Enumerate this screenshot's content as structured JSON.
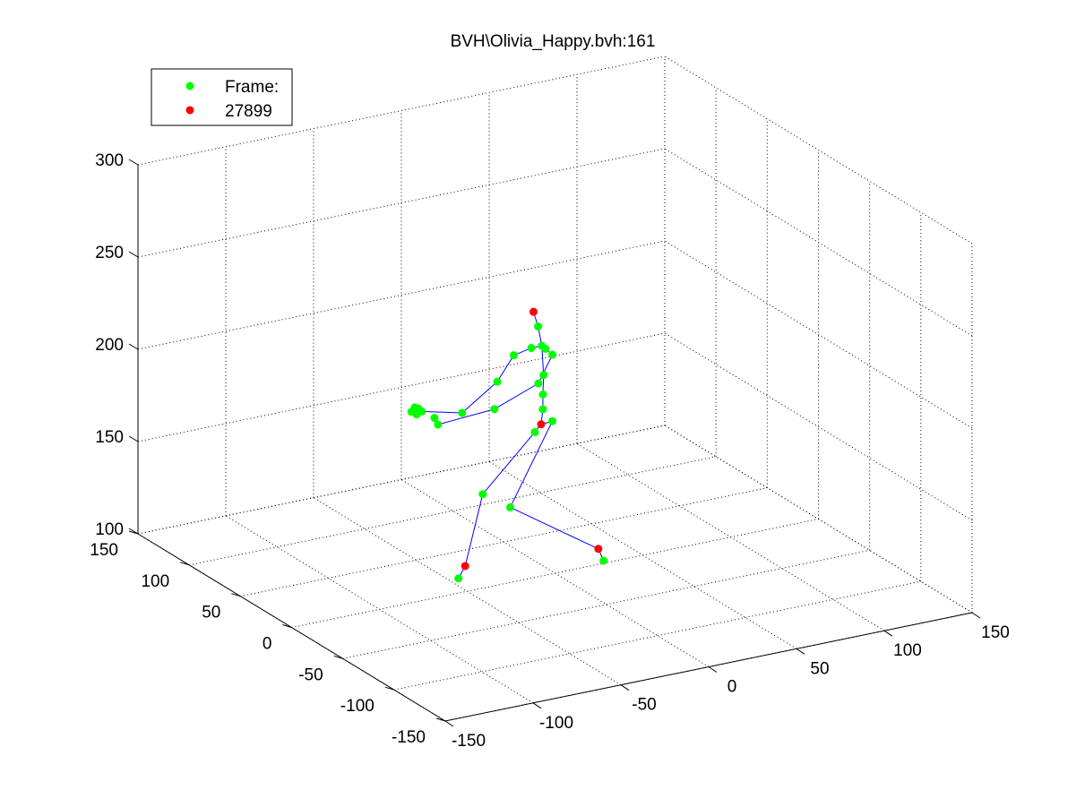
{
  "chart_data": {
    "type": "scatter3d",
    "title": "BVH\\Olivia_Happy.bvh:161",
    "xlim": [
      -150,
      150
    ],
    "ylim": [
      -150,
      150
    ],
    "zlim": [
      100,
      300
    ],
    "x_ticks": [
      "-150",
      "-100",
      "-50",
      "0",
      "50",
      "100",
      "150"
    ],
    "y_ticks": [
      "-150",
      "-100",
      "-50",
      "0",
      "50",
      "100",
      "150"
    ],
    "z_ticks": [
      "100",
      "150",
      "200",
      "250",
      "300"
    ],
    "grid": true,
    "legend": {
      "placement": "top-left",
      "entries": [
        {
          "label": "Frame:",
          "color": "#00ff00"
        },
        {
          "label": "27899",
          "color": "#ff0000"
        }
      ]
    },
    "colors": {
      "joint": "#00ff00",
      "end_joint": "#ff0000",
      "bone": "#0000ff"
    },
    "joints": [
      {
        "id": "hips",
        "x": -5,
        "y": 5,
        "z": 180,
        "end": true
      },
      {
        "id": "spine1",
        "x": -4,
        "y": 5,
        "z": 188
      },
      {
        "id": "spine2",
        "x": -4,
        "y": 5,
        "z": 196
      },
      {
        "id": "chest",
        "x": -3,
        "y": 6,
        "z": 206
      },
      {
        "id": "neck",
        "x": -4,
        "y": 6,
        "z": 222
      },
      {
        "id": "head",
        "x": -5,
        "y": 8,
        "z": 232
      },
      {
        "id": "head_end",
        "x": -7,
        "y": 9,
        "z": 240,
        "end": true
      },
      {
        "id": "r_shoulder",
        "x": -10,
        "y": 6,
        "z": 222
      },
      {
        "id": "r_upperarm",
        "x": -20,
        "y": 6,
        "z": 220
      },
      {
        "id": "r_forearm",
        "x": -30,
        "y": 5,
        "z": 208
      },
      {
        "id": "r_hand",
        "x": -50,
        "y": 5,
        "z": 195
      },
      {
        "id": "r_finger1",
        "x": -70,
        "y": 10,
        "z": 198
      },
      {
        "id": "r_finger2",
        "x": -72,
        "y": 10,
        "z": 200
      },
      {
        "id": "r_finger3",
        "x": -74,
        "y": 10,
        "z": 201
      },
      {
        "id": "r_finger4",
        "x": -73,
        "y": 10,
        "z": 197
      },
      {
        "id": "r_finger5",
        "x": -76,
        "y": 10,
        "z": 199
      },
      {
        "id": "l_shoulder",
        "x": -2,
        "y": 6,
        "z": 220
      },
      {
        "id": "l_upperarm",
        "x": 2,
        "y": 6,
        "z": 216
      },
      {
        "id": "l_forearm",
        "x": -6,
        "y": 6,
        "z": 202
      },
      {
        "id": "l_hand",
        "x": -31,
        "y": 6,
        "z": 193
      },
      {
        "id": "l_finger1",
        "x": -62,
        "y": 8,
        "z": 190
      },
      {
        "id": "l_finger2",
        "x": -64,
        "y": 8,
        "z": 194
      },
      {
        "id": "r_upleg",
        "x": -8,
        "y": 6,
        "z": 176
      },
      {
        "id": "r_leg",
        "x": -40,
        "y": 2,
        "z": 150
      },
      {
        "id": "r_foot",
        "x": -50,
        "y": 2,
        "z": 113,
        "end": true
      },
      {
        "id": "r_toe",
        "x": -55,
        "y": 0,
        "z": 108
      },
      {
        "id": "l_upleg",
        "x": 2,
        "y": 6,
        "z": 180
      },
      {
        "id": "l_leg",
        "x": -22,
        "y": 6,
        "z": 138
      },
      {
        "id": "l_foot",
        "x": 20,
        "y": -8,
        "z": 112,
        "end": true
      },
      {
        "id": "l_toe",
        "x": 23,
        "y": -8,
        "z": 105
      }
    ],
    "bones": [
      [
        "hips",
        "spine1"
      ],
      [
        "spine1",
        "spine2"
      ],
      [
        "spine2",
        "chest"
      ],
      [
        "chest",
        "neck"
      ],
      [
        "neck",
        "head"
      ],
      [
        "head",
        "head_end"
      ],
      [
        "neck",
        "r_shoulder"
      ],
      [
        "r_shoulder",
        "r_upperarm"
      ],
      [
        "r_upperarm",
        "r_forearm"
      ],
      [
        "r_forearm",
        "r_hand"
      ],
      [
        "r_hand",
        "r_finger1"
      ],
      [
        "neck",
        "l_shoulder"
      ],
      [
        "l_shoulder",
        "l_upperarm"
      ],
      [
        "l_upperarm",
        "l_forearm"
      ],
      [
        "l_forearm",
        "l_hand"
      ],
      [
        "l_hand",
        "l_finger1"
      ],
      [
        "hips",
        "r_upleg"
      ],
      [
        "r_upleg",
        "r_leg"
      ],
      [
        "r_leg",
        "r_foot"
      ],
      [
        "r_foot",
        "r_toe"
      ],
      [
        "hips",
        "l_upleg"
      ],
      [
        "l_upleg",
        "l_leg"
      ],
      [
        "l_leg",
        "l_foot"
      ],
      [
        "l_foot",
        "l_toe"
      ]
    ]
  }
}
